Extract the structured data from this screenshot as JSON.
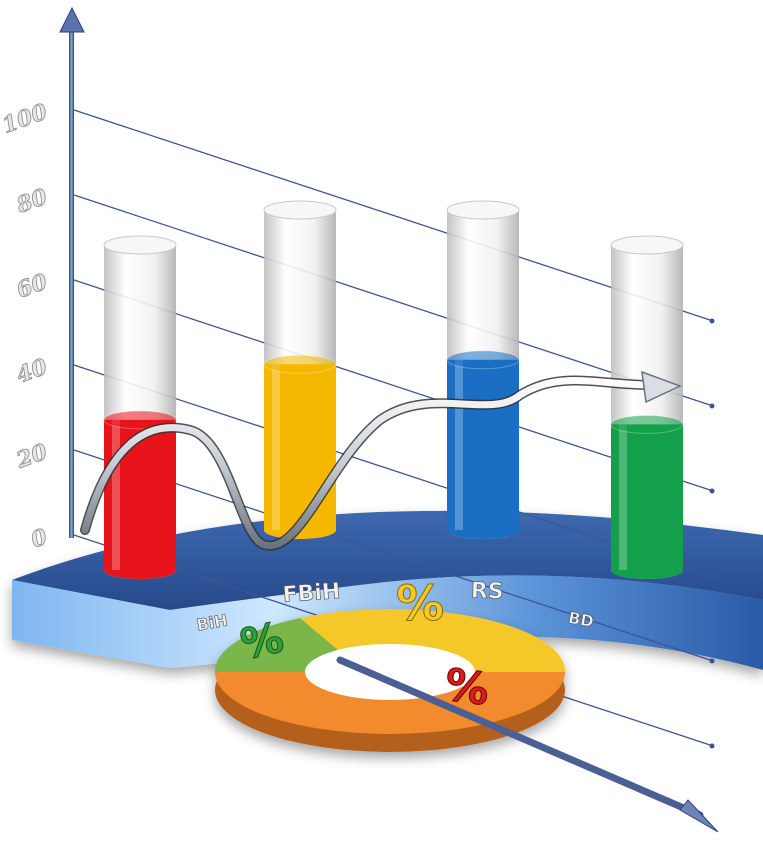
{
  "chart_data": {
    "type": "bar",
    "title": "",
    "xlabel": "",
    "ylabel": "",
    "ylim": [
      0,
      100
    ],
    "yticks": [
      "0",
      "20",
      "40",
      "60",
      "80",
      "100"
    ],
    "categories": [
      "BiH",
      "FBiH",
      "RS",
      "BD"
    ],
    "values": [
      33,
      37,
      38,
      32
    ],
    "colors": [
      "#e8141b",
      "#f5b800",
      "#1a6fc4",
      "#14a04a"
    ],
    "grid": true,
    "trend_line": true,
    "center_symbol": "%",
    "ring_symbols": [
      "%",
      "%"
    ],
    "ring_colors": [
      "#f28a2e",
      "#f5c82a",
      "#7ab648"
    ]
  }
}
